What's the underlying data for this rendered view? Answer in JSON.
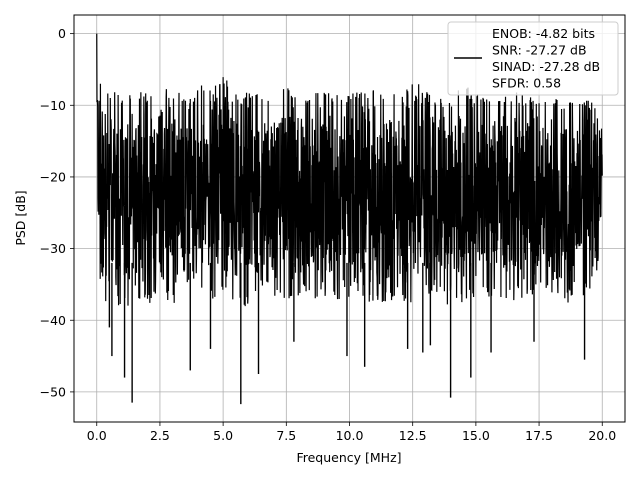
{
  "chart_data": {
    "type": "line",
    "xlabel": "Frequency [MHz]",
    "ylabel": "PSD [dB]",
    "xlim": [
      -0.9,
      20.9
    ],
    "ylim": [
      -54.2,
      2.6
    ],
    "xticks": [
      0.0,
      2.5,
      5.0,
      7.5,
      10.0,
      12.5,
      15.0,
      17.5,
      20.0
    ],
    "xtick_labels": [
      "0.0",
      "2.5",
      "5.0",
      "7.5",
      "10.0",
      "12.5",
      "15.0",
      "17.5",
      "20.0"
    ],
    "yticks": [
      0,
      -10,
      -20,
      -30,
      -40,
      -50
    ],
    "ytick_labels": [
      "0",
      "−10",
      "−20",
      "−30",
      "−40",
      "−50"
    ],
    "grid": true,
    "legend_position": "top-right",
    "series": [
      {
        "name": "ENOB: -4.82 bits\nSNR: -27.27 dB\nSINAD: -27.28 dB\nSFDR: 0.58",
        "color": "#000000",
        "x": [
          0.0,
          0.05,
          0.1,
          0.3,
          0.5,
          0.7,
          0.9,
          1.1,
          1.3,
          1.5,
          1.8,
          2.2,
          2.6,
          3.0,
          3.4,
          3.8,
          4.2,
          4.6,
          5.0,
          5.4,
          5.8,
          6.2,
          6.6,
          7.0,
          7.4,
          7.8,
          8.2,
          8.6,
          9.0,
          9.4,
          9.8,
          10.2,
          10.6,
          11.0,
          11.4,
          11.8,
          12.2,
          12.6,
          13.0,
          13.4,
          13.8,
          14.2,
          14.6,
          15.0,
          15.4,
          15.8,
          16.2,
          16.6,
          17.0,
          17.4,
          17.8,
          18.2,
          18.6,
          19.0,
          19.4,
          19.8,
          20.0
        ],
        "y_upper": [
          0.0,
          -3.0,
          -6.0,
          -8.5,
          -8.0,
          -8.0,
          -8.5,
          -8.0,
          -7.5,
          -8.5,
          -8.0,
          -8.5,
          -7.5,
          -8.0,
          -8.0,
          -8.5,
          -7.0,
          -8.0,
          -5.0,
          -8.0,
          -8.0,
          -7.5,
          -8.0,
          -8.5,
          -7.0,
          -8.0,
          -8.5,
          -7.5,
          -8.0,
          -8.0,
          -8.5,
          -7.5,
          -8.0,
          -7.5,
          -8.0,
          -8.5,
          -8.0,
          -6.0,
          -8.0,
          -8.5,
          -8.0,
          -8.0,
          -7.0,
          -8.5,
          -8.0,
          -8.0,
          -8.5,
          -7.5,
          -8.5,
          -8.5,
          -8.0,
          -9.0,
          -9.0,
          -9.0,
          -9.0,
          -9.5,
          -10.5
        ],
        "y_lower": [
          -22.0,
          -30.0,
          -34.0,
          -38.0,
          -40.0,
          -36.0,
          -39.0,
          -38.0,
          -40.0,
          -37.0,
          -38.0,
          -38.0,
          -37.0,
          -38.0,
          -37.0,
          -36.0,
          -37.0,
          -38.0,
          -37.0,
          -38.0,
          -39.0,
          -37.0,
          -36.0,
          -37.0,
          -37.0,
          -38.0,
          -36.0,
          -37.0,
          -37.0,
          -38.0,
          -36.0,
          -38.0,
          -37.0,
          -38.0,
          -38.0,
          -37.0,
          -38.0,
          -38.0,
          -37.0,
          -36.0,
          -38.0,
          -37.0,
          -38.0,
          -37.0,
          -37.0,
          -37.0,
          -38.0,
          -37.0,
          -37.0,
          -36.0,
          -37.0,
          -36.0,
          -38.0,
          -36.0,
          -37.0,
          -34.0,
          -23.0
        ],
        "deep_minima": [
          {
            "x": 0.5,
            "y": -41.0
          },
          {
            "x": 0.6,
            "y": -45.0
          },
          {
            "x": 1.1,
            "y": -48.0
          },
          {
            "x": 1.4,
            "y": -51.5
          },
          {
            "x": 3.7,
            "y": -47.0
          },
          {
            "x": 4.5,
            "y": -44.0
          },
          {
            "x": 5.7,
            "y": -51.7
          },
          {
            "x": 6.4,
            "y": -47.5
          },
          {
            "x": 7.8,
            "y": -43.0
          },
          {
            "x": 9.9,
            "y": -45.0
          },
          {
            "x": 10.6,
            "y": -46.5
          },
          {
            "x": 12.3,
            "y": -44.0
          },
          {
            "x": 12.9,
            "y": -44.5
          },
          {
            "x": 13.2,
            "y": -43.5
          },
          {
            "x": 14.0,
            "y": -50.8
          },
          {
            "x": 14.8,
            "y": -48.0
          },
          {
            "x": 15.6,
            "y": -44.5
          },
          {
            "x": 17.3,
            "y": -43.0
          },
          {
            "x": 19.3,
            "y": -45.5
          }
        ]
      }
    ]
  }
}
